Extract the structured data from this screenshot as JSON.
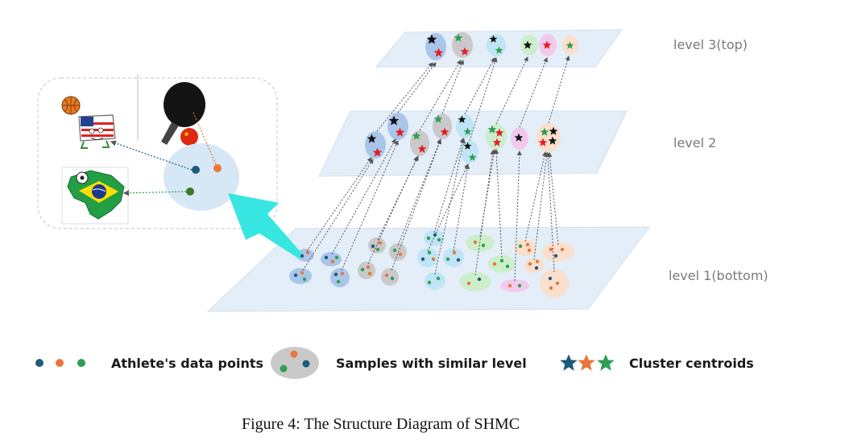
{
  "levels": {
    "top": "level 3(top)",
    "middle": "level 2",
    "bottom": "level 1(bottom)"
  },
  "legend": {
    "points": "Athlete's data points",
    "samples": "Samples with similar level",
    "centroids": "Cluster centroids"
  },
  "caption": "Figure 4: The Structure Diagram of SHMC",
  "icons": [
    "usa-flag-mascot-icon",
    "basketball-icon",
    "ping-pong-paddle-icon",
    "china-flag-icon",
    "brazil-map-icon",
    "soccer-ball-icon"
  ],
  "colors": {
    "blue_point": "#1f5a7a",
    "orange_point": "#e8773a",
    "green_point": "#2e9e52",
    "plane": "#e7f0fa",
    "cyan_arrow": "#37e6e0",
    "blue_cluster": "#a9c6ea",
    "gray_cluster": "#c9c9c9",
    "lightblue_cluster": "#bfe4f5",
    "lightgreen_cluster": "#cdeecb",
    "pink_cluster": "#f2c9ec",
    "peach_cluster": "#fadfcc"
  }
}
